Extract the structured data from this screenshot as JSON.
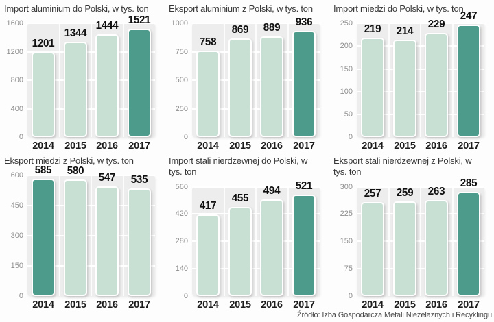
{
  "page": {
    "source_note": "Źródło: Izba Gospodarcza Metali Nieżelaznych i Recyklingu"
  },
  "colors": {
    "bar_default": "#c8dfd4",
    "bar_highlight": "#4d9b8b",
    "plot_bg": "#ededed",
    "gridline": "#ffffff",
    "tick_text": "#8f8f8f",
    "title_text": "#383838",
    "year_text": "#1c1c1c",
    "value_text": "#101010",
    "source_text": "#4a4a4a"
  },
  "chart_data": [
    {
      "type": "bar",
      "title": "Import aluminium do Polski, w tys. ton",
      "categories": [
        "2014",
        "2015",
        "2016",
        "2017"
      ],
      "values": [
        1201,
        1344,
        1444,
        1521
      ],
      "ylim": [
        0,
        1600
      ],
      "yticks": [
        0,
        400,
        800,
        1200,
        1600
      ],
      "highlight_index": 3,
      "grid": true,
      "legend": false
    },
    {
      "type": "bar",
      "title": "Eksport aluminium z Polski, w tys. ton",
      "categories": [
        "2014",
        "2015",
        "2016",
        "2017"
      ],
      "values": [
        758,
        869,
        889,
        936
      ],
      "ylim": [
        0,
        1000
      ],
      "yticks": [
        0,
        250,
        500,
        750,
        1000
      ],
      "highlight_index": 3,
      "grid": true,
      "legend": false
    },
    {
      "type": "bar",
      "title": "Import miedzi do Polski, w tys. ton",
      "categories": [
        "2014",
        "2015",
        "2016",
        "2017"
      ],
      "values": [
        219,
        214,
        229,
        247
      ],
      "ylim": [
        0,
        250
      ],
      "yticks": [
        0,
        50,
        100,
        150,
        200,
        250
      ],
      "highlight_index": 3,
      "grid": true,
      "legend": false
    },
    {
      "type": "bar",
      "title": "Eksport miedzi z Polski, w tys. ton",
      "categories": [
        "2014",
        "2015",
        "2016",
        "2017"
      ],
      "values": [
        585,
        580,
        547,
        535
      ],
      "ylim": [
        0,
        600
      ],
      "yticks": [
        0,
        150,
        300,
        450,
        600
      ],
      "highlight_index": 0,
      "grid": true,
      "legend": false
    },
    {
      "type": "bar",
      "title": "Import stali nierdzewnej do Polski, w tys. ton",
      "categories": [
        "2014",
        "2015",
        "2016",
        "2017"
      ],
      "values": [
        417,
        455,
        494,
        521
      ],
      "ylim": [
        0,
        560
      ],
      "yticks": [
        0,
        140,
        280,
        420,
        560
      ],
      "highlight_index": 3,
      "grid": true,
      "legend": false
    },
    {
      "type": "bar",
      "title": "Eksport stali nierdzewnej z Polski, w tys. ton",
      "categories": [
        "2014",
        "2015",
        "2016",
        "2017"
      ],
      "values": [
        257,
        259,
        263,
        285
      ],
      "ylim": [
        0,
        300
      ],
      "yticks": [
        0,
        75,
        150,
        225,
        300
      ],
      "highlight_index": 3,
      "grid": true,
      "legend": false
    }
  ]
}
